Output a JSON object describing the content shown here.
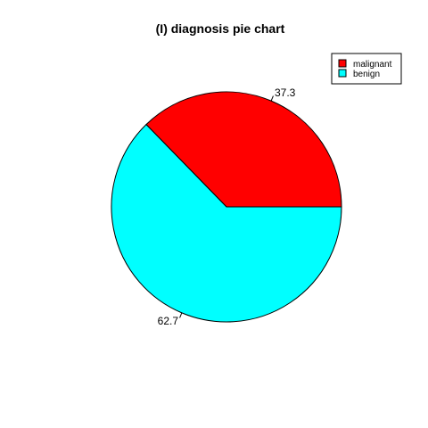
{
  "chart_data": {
    "type": "pie",
    "title": "(I) diagnosis pie chart",
    "categories": [
      "malignant",
      "benign"
    ],
    "values": [
      37.3,
      62.7
    ],
    "labels": [
      "37.3",
      "62.7"
    ],
    "colors": [
      "#ff0000",
      "#00ffff"
    ],
    "legend": {
      "position": "top-right",
      "entries": [
        "malignant",
        "benign"
      ]
    }
  }
}
